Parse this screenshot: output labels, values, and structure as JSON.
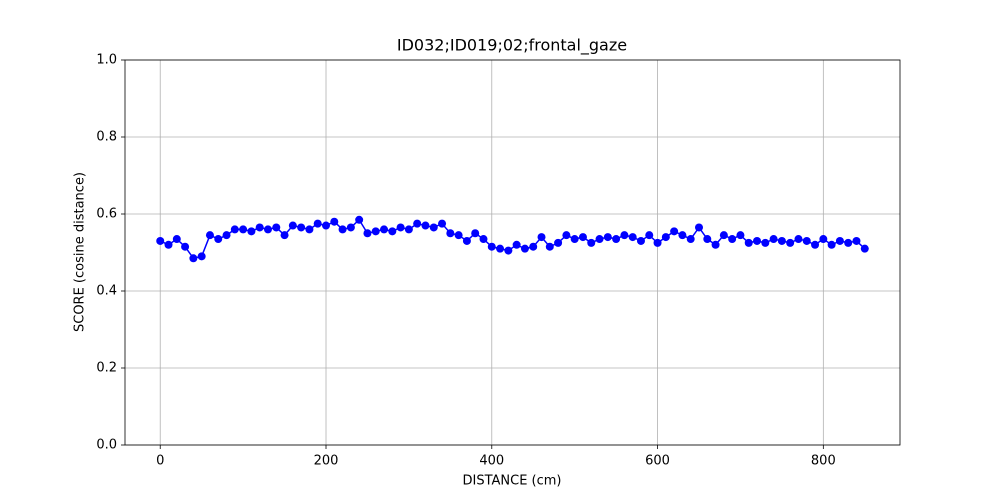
{
  "chart_data": {
    "type": "line",
    "title": "ID032;ID019;02;frontal_gaze",
    "xlabel": "DISTANCE (cm)",
    "ylabel": "SCORE (cosine distance)",
    "x": [
      0,
      10,
      20,
      30,
      40,
      50,
      60,
      70,
      80,
      90,
      100,
      110,
      120,
      130,
      140,
      150,
      160,
      170,
      180,
      190,
      200,
      210,
      220,
      230,
      240,
      250,
      260,
      270,
      280,
      290,
      300,
      310,
      320,
      330,
      340,
      350,
      360,
      370,
      380,
      390,
      400,
      410,
      420,
      430,
      440,
      450,
      460,
      470,
      480,
      490,
      500,
      510,
      520,
      530,
      540,
      550,
      560,
      570,
      580,
      590,
      600,
      610,
      620,
      630,
      640,
      650,
      660,
      670,
      680,
      690,
      700,
      710,
      720,
      730,
      740,
      750,
      760,
      770,
      780,
      790,
      800,
      810,
      820,
      830,
      840,
      850
    ],
    "series": [
      {
        "name": "score",
        "color": "#0000ff",
        "marker": true,
        "values": [
          0.53,
          0.52,
          0.535,
          0.515,
          0.485,
          0.49,
          0.545,
          0.535,
          0.545,
          0.56,
          0.56,
          0.555,
          0.565,
          0.56,
          0.565,
          0.545,
          0.57,
          0.565,
          0.56,
          0.575,
          0.57,
          0.58,
          0.56,
          0.565,
          0.585,
          0.55,
          0.555,
          0.56,
          0.555,
          0.565,
          0.56,
          0.575,
          0.57,
          0.565,
          0.575,
          0.55,
          0.545,
          0.53,
          0.55,
          0.535,
          0.515,
          0.51,
          0.505,
          0.52,
          0.51,
          0.515,
          0.54,
          0.515,
          0.525,
          0.545,
          0.535,
          0.54,
          0.525,
          0.535,
          0.54,
          0.535,
          0.545,
          0.54,
          0.53,
          0.545,
          0.525,
          0.54,
          0.555,
          0.545,
          0.535,
          0.565,
          0.535,
          0.52,
          0.545,
          0.535,
          0.545,
          0.525,
          0.53,
          0.525,
          0.535,
          0.53,
          0.525,
          0.535,
          0.53,
          0.52,
          0.535,
          0.52,
          0.53,
          0.525,
          0.53,
          0.51
        ]
      }
    ],
    "xlim": [
      -42.5,
      892.5
    ],
    "xticks": [
      0,
      200,
      400,
      600,
      800
    ],
    "ylim": [
      0,
      1
    ],
    "yticks": [
      {
        "value": 0,
        "label": "0.0"
      },
      0.2,
      0.4,
      0.6,
      0.8,
      {
        "value": 1,
        "label": "1.0"
      }
    ],
    "grid": true
  }
}
